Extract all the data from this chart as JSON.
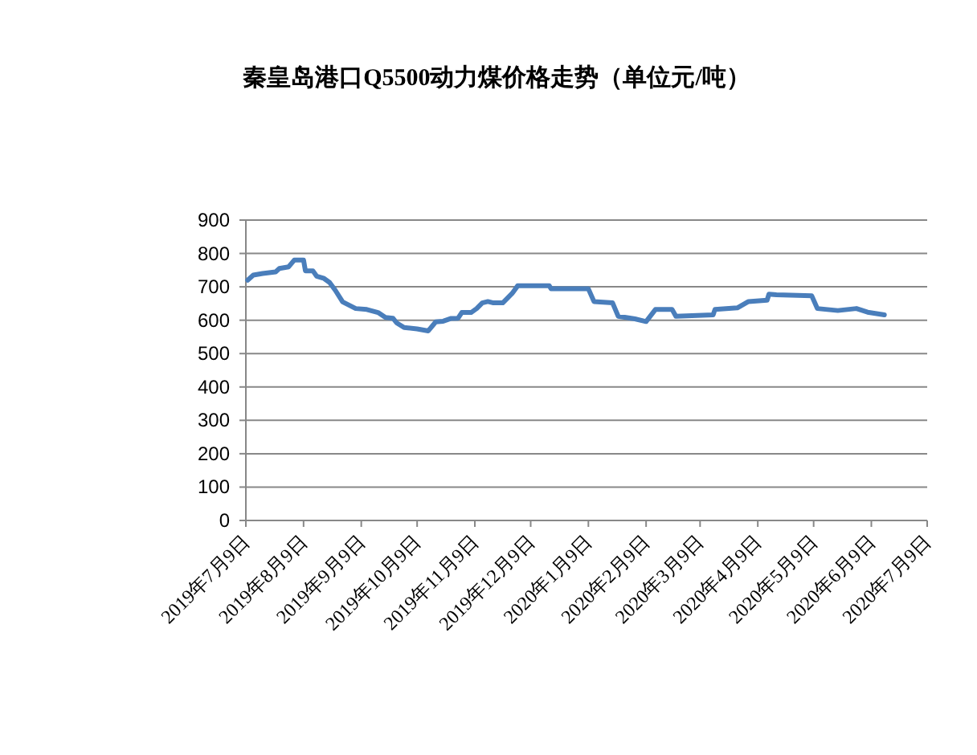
{
  "chart_data": {
    "type": "line",
    "title": "秦皇岛港口Q5500动力煤价格走势（单位元/吨）",
    "x": [
      "2019-07-10",
      "2019-07-13",
      "2019-07-18",
      "2019-07-25",
      "2019-07-27",
      "2019-08-01",
      "2019-08-04",
      "2019-08-09",
      "2019-08-10",
      "2019-08-14",
      "2019-08-16",
      "2019-08-20",
      "2019-08-23",
      "2019-08-26",
      "2019-08-30",
      "2019-09-06",
      "2019-09-12",
      "2019-09-18",
      "2019-09-22",
      "2019-09-26",
      "2019-09-28",
      "2019-10-02",
      "2019-10-09",
      "2019-10-15",
      "2019-10-19",
      "2019-10-23",
      "2019-10-27",
      "2019-10-31",
      "2019-11-02",
      "2019-11-07",
      "2019-11-10",
      "2019-11-13",
      "2019-11-16",
      "2019-11-19",
      "2019-11-24",
      "2019-11-29",
      "2019-12-02",
      "2019-12-12",
      "2019-12-19",
      "2019-12-20",
      "2020-01-04",
      "2020-01-09",
      "2020-01-12",
      "2020-01-22",
      "2020-01-25",
      "2020-02-03",
      "2020-02-09",
      "2020-02-14",
      "2020-02-23",
      "2020-02-25",
      "2020-03-16",
      "2020-03-17",
      "2020-03-29",
      "2020-04-04",
      "2020-04-14",
      "2020-04-15",
      "2020-04-19",
      "2020-05-08",
      "2020-05-11",
      "2020-05-22",
      "2020-06-01",
      "2020-06-07",
      "2020-06-16"
    ],
    "series": [
      {
        "color": "#4a7ebb",
        "values": [
          720,
          735,
          740,
          745,
          755,
          760,
          780,
          780,
          748,
          748,
          732,
          725,
          713,
          690,
          655,
          635,
          632,
          623,
          608,
          606,
          592,
          578,
          574,
          568,
          595,
          597,
          605,
          606,
          623,
          623,
          635,
          652,
          656,
          652,
          652,
          680,
          703,
          703,
          703,
          694,
          694,
          694,
          656,
          652,
          612,
          604,
          596,
          632,
          632,
          612,
          616,
          632,
          637,
          656,
          660,
          678,
          676,
          673,
          635,
          629,
          635,
          624,
          616
        ]
      }
    ],
    "xlim": [
      "2019-07-09",
      "2020-07-09"
    ],
    "xticks": [
      {
        "value": "2019-07-09",
        "label": "2019年7月9日"
      },
      {
        "value": "2019-08-09",
        "label": "2019年8月9日"
      },
      {
        "value": "2019-09-09",
        "label": "2019年9月9日"
      },
      {
        "value": "2019-10-09",
        "label": "2019年10月9日"
      },
      {
        "value": "2019-11-09",
        "label": "2019年11月9日"
      },
      {
        "value": "2019-12-09",
        "label": "2019年12月9日"
      },
      {
        "value": "2020-01-09",
        "label": "2020年1月9日"
      },
      {
        "value": "2020-02-09",
        "label": "2020年2月9日"
      },
      {
        "value": "2020-03-09",
        "label": "2020年3月9日"
      },
      {
        "value": "2020-04-09",
        "label": "2020年4月9日"
      },
      {
        "value": "2020-05-09",
        "label": "2020年5月9日"
      },
      {
        "value": "2020-06-09",
        "label": "2020年6月9日"
      },
      {
        "value": "2020-07-09",
        "label": "2020年7月9日"
      }
    ],
    "ylim": [
      0,
      900
    ],
    "yticks": [
      0,
      100,
      200,
      300,
      400,
      500,
      600,
      700,
      800,
      900
    ],
    "grid": "y"
  }
}
